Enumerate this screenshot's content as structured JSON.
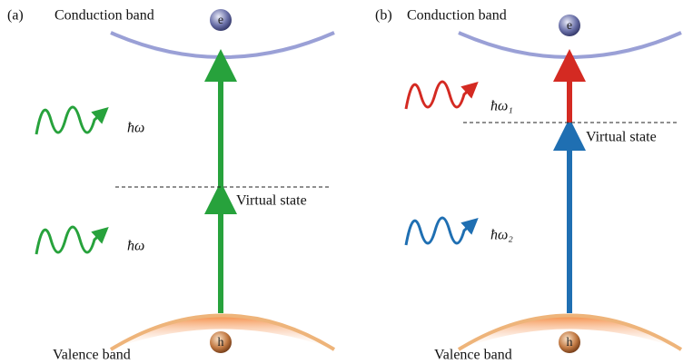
{
  "panels": [
    {
      "tag": "(a)",
      "conduction_band": "Conduction band",
      "electron": "e",
      "photons": [
        "ħω",
        "ħω"
      ],
      "virtual_state": "Virtual state",
      "valence_band": "Valence band",
      "hole": "h"
    },
    {
      "tag": "(b)",
      "conduction_band": "Conduction band",
      "electron": "e",
      "photons": [
        "ħω₁",
        "ħω₂"
      ],
      "virtual_state": "Virtual state",
      "valence_band": "Valence band",
      "hole": "h"
    }
  ]
}
